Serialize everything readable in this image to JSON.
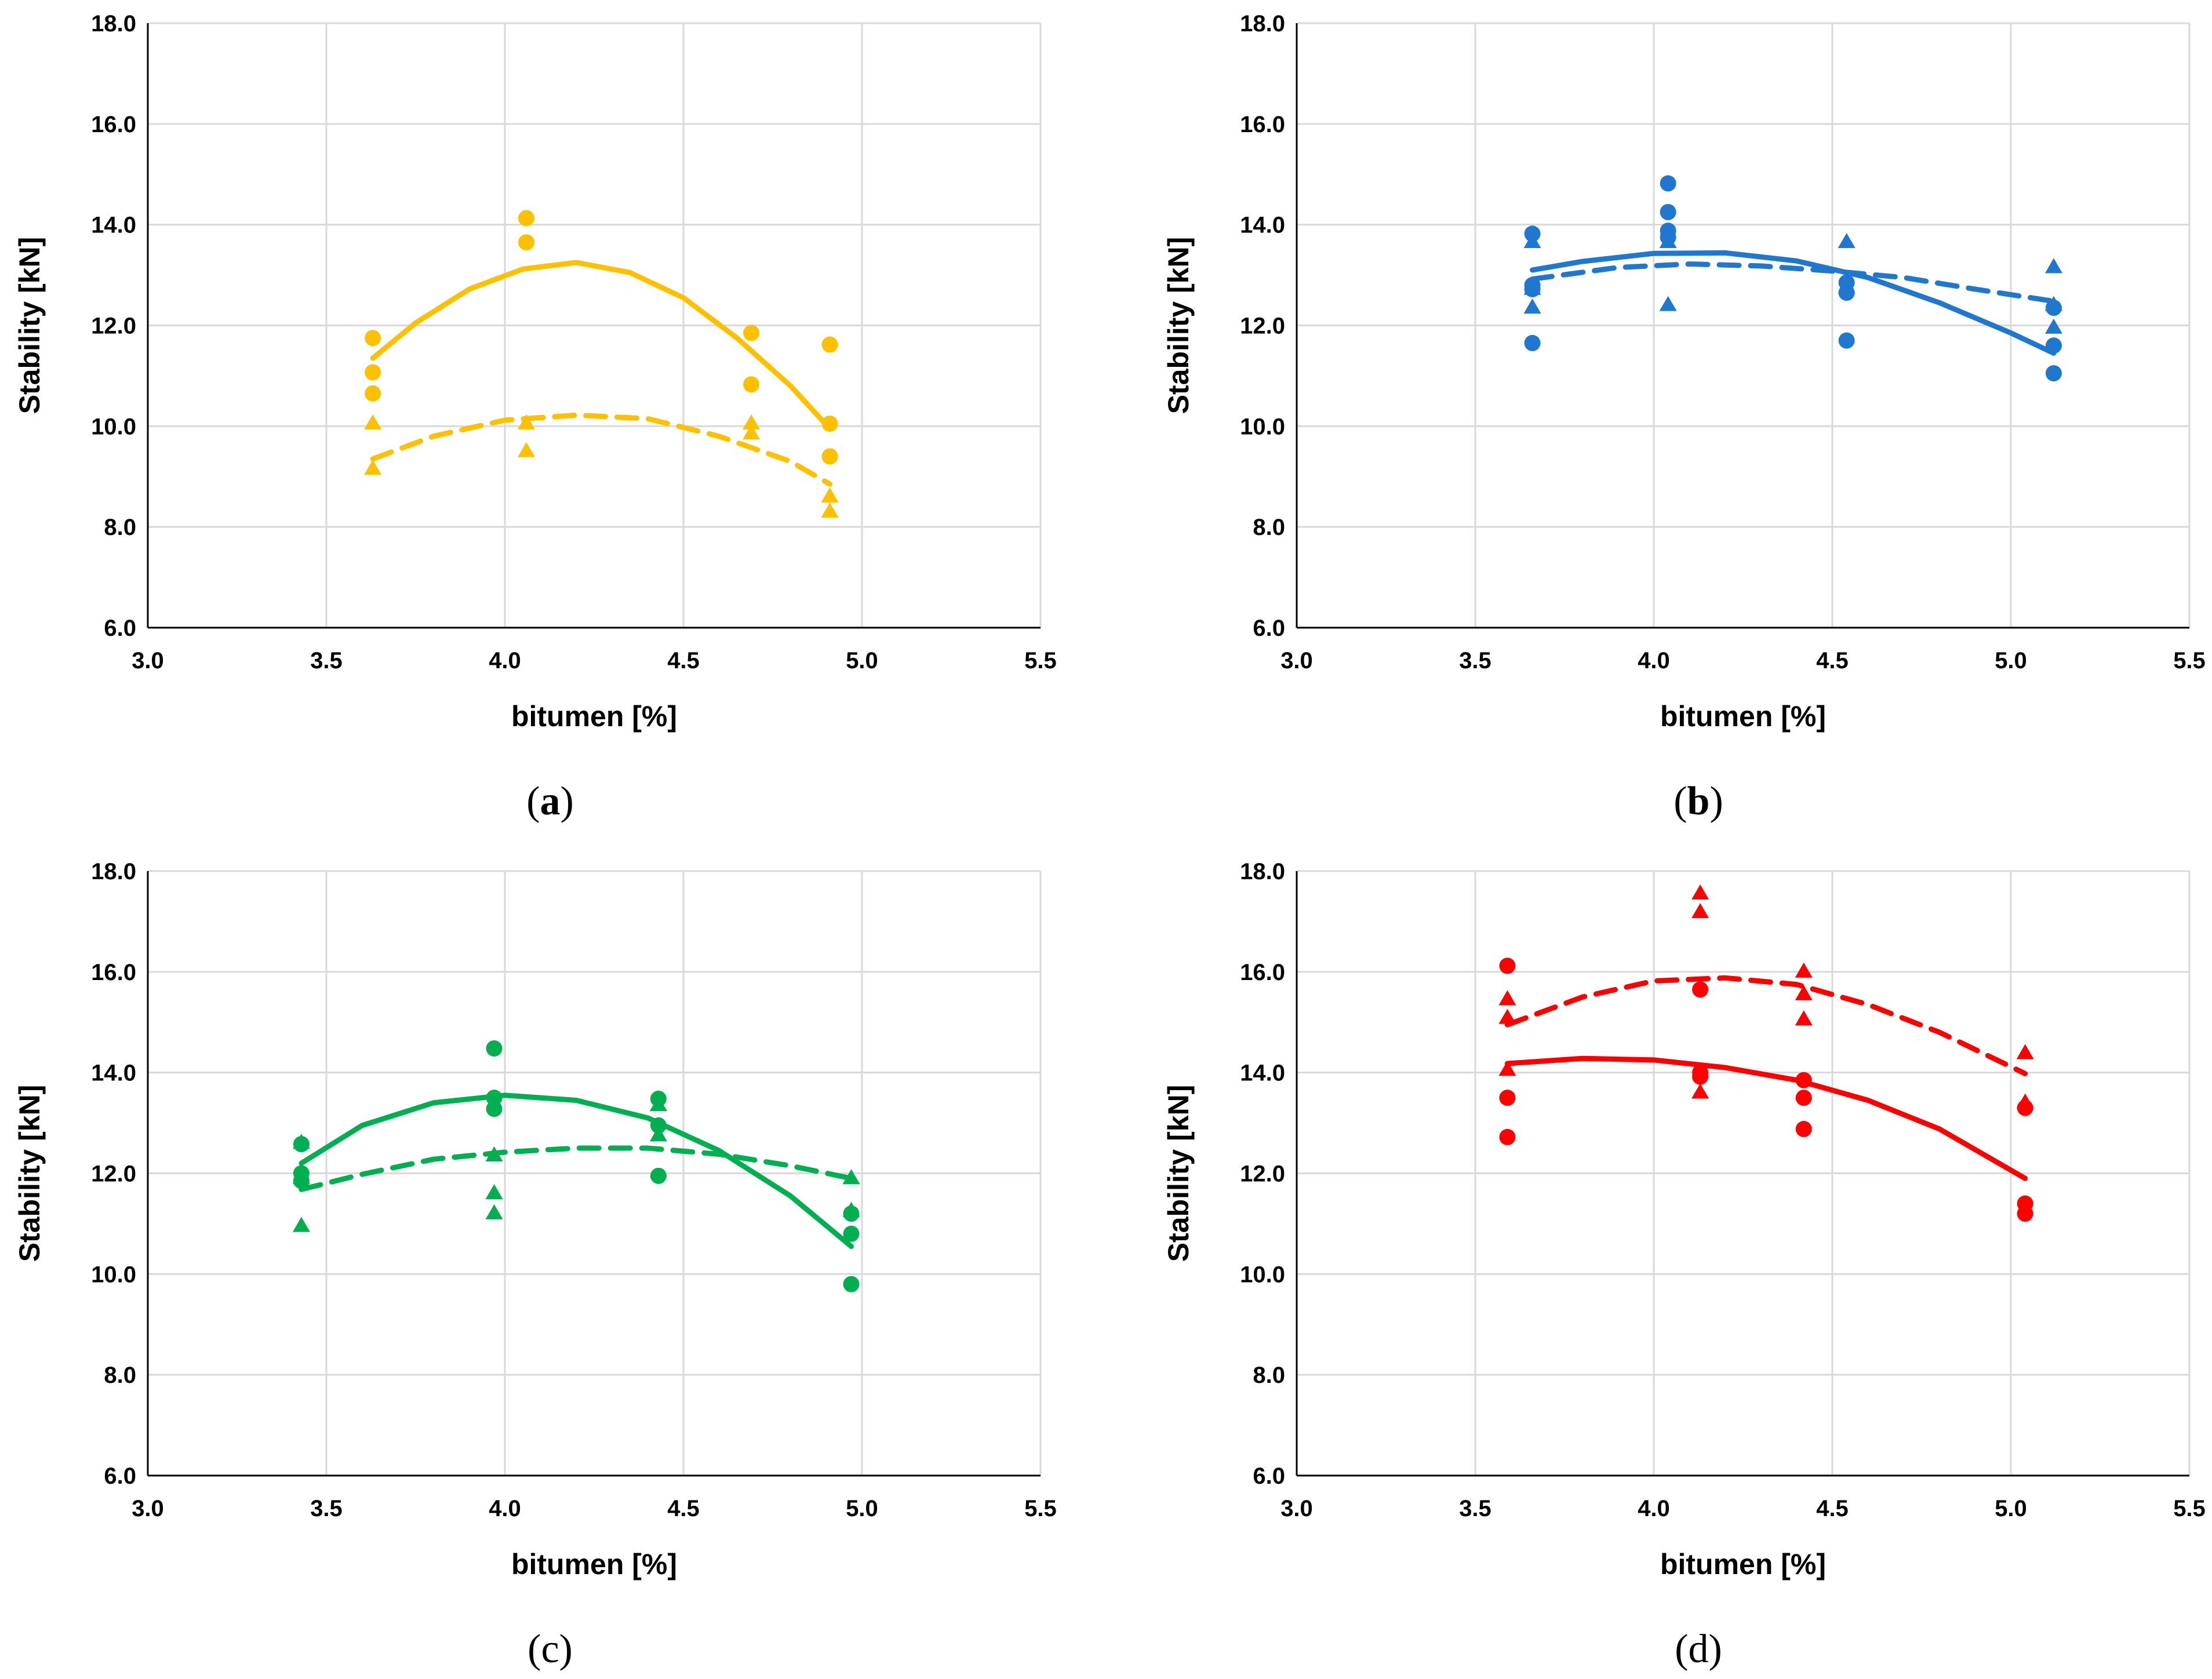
{
  "chart_data": [
    {
      "type": "scatter",
      "caption": "(a)",
      "caption_letter": "a",
      "caption_bold": true,
      "color": "#FFC000",
      "xlabel": "bitumen [%]",
      "ylabel": "Stability [kN]",
      "xlim": [
        3.0,
        5.5
      ],
      "ylim": [
        6.0,
        18.0
      ],
      "xticks": [
        "3.0",
        "3.5",
        "4.0",
        "4.5",
        "5.0",
        "5.5"
      ],
      "yticks": [
        "6.0",
        "8.0",
        "10.0",
        "12.0",
        "14.0",
        "16.0",
        "18.0"
      ],
      "grid": true,
      "series": [
        {
          "name": "circles",
          "marker": "circle",
          "points": [
            [
              3.63,
              11.75
            ],
            [
              3.63,
              11.07
            ],
            [
              3.63,
              10.65
            ],
            [
              4.06,
              14.13
            ],
            [
              4.06,
              13.65
            ],
            [
              4.69,
              11.85
            ],
            [
              4.69,
              10.83
            ],
            [
              4.91,
              11.62
            ],
            [
              4.91,
              10.05
            ],
            [
              4.91,
              9.4
            ]
          ]
        },
        {
          "name": "triangles",
          "marker": "triangle",
          "points": [
            [
              3.63,
              10.05
            ],
            [
              3.63,
              9.15
            ],
            [
              4.06,
              10.05
            ],
            [
              4.06,
              9.5
            ],
            [
              4.69,
              10.05
            ],
            [
              4.69,
              9.85
            ],
            [
              4.91,
              8.6
            ],
            [
              4.91,
              8.3
            ]
          ]
        },
        {
          "name": "circles trend",
          "line": "solid",
          "curve": [
            [
              3.63,
              11.35
            ],
            [
              3.75,
              12.05
            ],
            [
              3.9,
              12.72
            ],
            [
              4.05,
              13.12
            ],
            [
              4.2,
              13.25
            ],
            [
              4.35,
              13.05
            ],
            [
              4.5,
              12.55
            ],
            [
              4.65,
              11.75
            ],
            [
              4.8,
              10.8
            ],
            [
              4.91,
              9.95
            ]
          ]
        },
        {
          "name": "triangles trend",
          "line": "dashed",
          "curve": [
            [
              3.63,
              9.35
            ],
            [
              3.8,
              9.8
            ],
            [
              4.0,
              10.12
            ],
            [
              4.2,
              10.22
            ],
            [
              4.4,
              10.15
            ],
            [
              4.6,
              9.8
            ],
            [
              4.8,
              9.3
            ],
            [
              4.91,
              8.85
            ]
          ]
        }
      ]
    },
    {
      "type": "scatter",
      "caption": "(b)",
      "caption_letter": "b",
      "caption_bold": true,
      "color": "#1F77D0",
      "xlabel": "bitumen [%]",
      "ylabel": "Stability [kN]",
      "xlim": [
        3.0,
        5.5
      ],
      "ylim": [
        6.0,
        18.0
      ],
      "xticks": [
        "3.0",
        "3.5",
        "4.0",
        "4.5",
        "5.0",
        "5.5"
      ],
      "yticks": [
        "6.0",
        "8.0",
        "10.0",
        "12.0",
        "14.0",
        "16.0",
        "18.0"
      ],
      "grid": true,
      "series": [
        {
          "name": "circles",
          "marker": "circle",
          "points": [
            [
              3.66,
              13.82
            ],
            [
              3.66,
              12.8
            ],
            [
              3.66,
              12.72
            ],
            [
              3.66,
              11.65
            ],
            [
              4.04,
              14.82
            ],
            [
              4.04,
              14.25
            ],
            [
              4.04,
              13.88
            ],
            [
              4.04,
              13.75
            ],
            [
              4.54,
              12.85
            ],
            [
              4.54,
              12.65
            ],
            [
              4.54,
              11.7
            ],
            [
              5.12,
              12.35
            ],
            [
              5.12,
              11.6
            ],
            [
              5.12,
              11.05
            ]
          ]
        },
        {
          "name": "triangles",
          "marker": "triangle",
          "points": [
            [
              3.66,
              13.65
            ],
            [
              3.66,
              12.72
            ],
            [
              3.66,
              12.35
            ],
            [
              4.04,
              13.65
            ],
            [
              4.04,
              12.4
            ],
            [
              4.54,
              13.65
            ],
            [
              4.54,
              12.75
            ],
            [
              5.12,
              13.15
            ],
            [
              5.12,
              12.4
            ],
            [
              5.12,
              11.95
            ]
          ]
        },
        {
          "name": "circles trend",
          "line": "solid",
          "curve": [
            [
              3.66,
              13.1
            ],
            [
              3.8,
              13.27
            ],
            [
              4.0,
              13.43
            ],
            [
              4.2,
              13.44
            ],
            [
              4.4,
              13.28
            ],
            [
              4.6,
              12.95
            ],
            [
              4.8,
              12.45
            ],
            [
              5.0,
              11.85
            ],
            [
              5.12,
              11.45
            ]
          ]
        },
        {
          "name": "triangles trend",
          "line": "dashed",
          "curve": [
            [
              3.66,
              12.92
            ],
            [
              3.9,
              13.15
            ],
            [
              4.1,
              13.22
            ],
            [
              4.3,
              13.18
            ],
            [
              4.5,
              13.08
            ],
            [
              4.7,
              12.95
            ],
            [
              4.9,
              12.72
            ],
            [
              5.12,
              12.48
            ]
          ]
        }
      ]
    },
    {
      "type": "scatter",
      "caption": "(c)",
      "caption_letter": "c",
      "caption_bold": false,
      "color": "#00B050",
      "xlabel": "bitumen [%]",
      "ylabel": "Stability [kN]",
      "xlim": [
        3.0,
        5.5
      ],
      "ylim": [
        6.0,
        18.0
      ],
      "xticks": [
        "3.0",
        "3.5",
        "4.0",
        "4.5",
        "5.0",
        "5.5"
      ],
      "yticks": [
        "6.0",
        "8.0",
        "10.0",
        "12.0",
        "14.0",
        "16.0",
        "18.0"
      ],
      "grid": true,
      "series": [
        {
          "name": "circles",
          "marker": "circle",
          "points": [
            [
              3.43,
              12.58
            ],
            [
              3.43,
              12.0
            ],
            [
              3.43,
              11.85
            ],
            [
              3.97,
              14.48
            ],
            [
              3.97,
              13.5
            ],
            [
              3.97,
              13.28
            ],
            [
              4.43,
              13.48
            ],
            [
              4.43,
              12.95
            ],
            [
              4.43,
              11.95
            ],
            [
              4.97,
              11.2
            ],
            [
              4.97,
              10.8
            ],
            [
              4.97,
              9.8
            ]
          ]
        },
        {
          "name": "triangles",
          "marker": "triangle",
          "points": [
            [
              3.43,
              12.6
            ],
            [
              3.43,
              11.9
            ],
            [
              3.43,
              10.95
            ],
            [
              3.97,
              12.35
            ],
            [
              3.97,
              11.6
            ],
            [
              3.97,
              11.2
            ],
            [
              4.43,
              13.35
            ],
            [
              4.43,
              12.75
            ],
            [
              4.97,
              11.9
            ],
            [
              4.97,
              11.25
            ]
          ]
        },
        {
          "name": "circles trend",
          "line": "solid",
          "curve": [
            [
              3.43,
              12.2
            ],
            [
              3.6,
              12.95
            ],
            [
              3.8,
              13.4
            ],
            [
              4.0,
              13.55
            ],
            [
              4.2,
              13.45
            ],
            [
              4.4,
              13.1
            ],
            [
              4.6,
              12.45
            ],
            [
              4.8,
              11.55
            ],
            [
              4.97,
              10.55
            ]
          ]
        },
        {
          "name": "triangles trend",
          "line": "dashed",
          "curve": [
            [
              3.43,
              11.68
            ],
            [
              3.6,
              11.98
            ],
            [
              3.8,
              12.28
            ],
            [
              4.0,
              12.42
            ],
            [
              4.2,
              12.5
            ],
            [
              4.4,
              12.5
            ],
            [
              4.6,
              12.38
            ],
            [
              4.8,
              12.15
            ],
            [
              4.97,
              11.9
            ]
          ]
        }
      ]
    },
    {
      "type": "scatter",
      "caption": "(d)",
      "caption_letter": "d",
      "caption_bold": false,
      "color": "#FF0000",
      "xlabel": "bitumen [%]",
      "ylabel": "Stability [kN]",
      "xlim": [
        3.0,
        5.5
      ],
      "ylim": [
        6.0,
        18.0
      ],
      "xticks": [
        "3.0",
        "3.5",
        "4.0",
        "4.5",
        "5.0",
        "5.5"
      ],
      "yticks": [
        "6.0",
        "8.0",
        "10.0",
        "12.0",
        "14.0",
        "16.0",
        "18.0"
      ],
      "grid": true,
      "series": [
        {
          "name": "circles",
          "marker": "circle",
          "points": [
            [
              3.59,
              16.12
            ],
            [
              3.59,
              13.5
            ],
            [
              3.59,
              12.72
            ],
            [
              4.13,
              15.65
            ],
            [
              4.13,
              14.0
            ],
            [
              4.13,
              13.92
            ],
            [
              4.42,
              13.85
            ],
            [
              4.42,
              13.5
            ],
            [
              4.42,
              12.88
            ],
            [
              5.04,
              13.3
            ],
            [
              5.04,
              11.4
            ],
            [
              5.04,
              11.2
            ]
          ]
        },
        {
          "name": "triangles",
          "marker": "triangle",
          "points": [
            [
              3.59,
              15.45
            ],
            [
              3.59,
              15.08
            ],
            [
              3.59,
              14.05
            ],
            [
              4.13,
              17.55
            ],
            [
              4.13,
              17.18
            ],
            [
              4.13,
              13.6
            ],
            [
              4.42,
              16.0
            ],
            [
              4.42,
              15.55
            ],
            [
              4.42,
              15.05
            ],
            [
              5.04,
              14.38
            ],
            [
              5.04,
              13.4
            ]
          ]
        },
        {
          "name": "circles trend",
          "line": "solid",
          "curve": [
            [
              3.59,
              14.18
            ],
            [
              3.8,
              14.28
            ],
            [
              4.0,
              14.25
            ],
            [
              4.2,
              14.1
            ],
            [
              4.4,
              13.85
            ],
            [
              4.6,
              13.45
            ],
            [
              4.8,
              12.88
            ],
            [
              5.04,
              11.9
            ]
          ]
        },
        {
          "name": "triangles trend",
          "line": "dashed",
          "curve": [
            [
              3.59,
              14.95
            ],
            [
              3.8,
              15.5
            ],
            [
              4.0,
              15.82
            ],
            [
              4.2,
              15.88
            ],
            [
              4.4,
              15.75
            ],
            [
              4.6,
              15.35
            ],
            [
              4.8,
              14.8
            ],
            [
              5.04,
              13.98
            ]
          ]
        }
      ]
    }
  ]
}
